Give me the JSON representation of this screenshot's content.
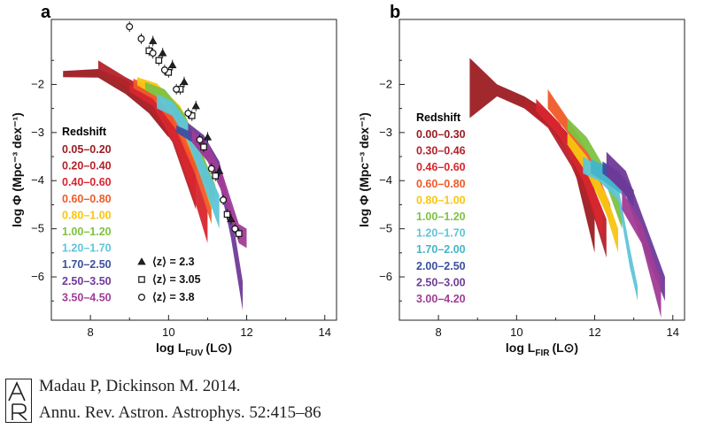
{
  "chart_data": [
    {
      "type": "area",
      "panel_letter": "a",
      "xlabel_main": "log L",
      "xlabel_sub": "FUV",
      "xlabel_unit": "(L⊙)",
      "ylabel": "log Φ (Mpc⁻³ dex⁻¹)",
      "xlim": [
        7,
        14.3
      ],
      "ylim": [
        -6.9,
        -0.65
      ],
      "xticks": [
        8,
        10,
        12,
        14
      ],
      "yticks": [
        -2,
        -3,
        -4,
        -5,
        -6
      ],
      "xtick_labels": [
        "8",
        "10",
        "12",
        "14"
      ],
      "ytick_labels": [
        "−2",
        "−3",
        "−4",
        "−5",
        "−6"
      ],
      "legend_title": "Redshift",
      "legend_placement": "left",
      "series": [
        {
          "name": "0.05–0.20",
          "color": "#9c1c22",
          "upper": [
            [
              7.3,
              -1.72
            ],
            [
              8.2,
              -1.68
            ],
            [
              8.9,
              -1.9
            ],
            [
              9.5,
              -2.3
            ],
            [
              10.0,
              -2.8
            ]
          ],
          "lower": [
            [
              7.3,
              -1.85
            ],
            [
              8.2,
              -1.86
            ],
            [
              8.9,
              -2.2
            ],
            [
              9.5,
              -2.6
            ],
            [
              10.0,
              -3.1
            ]
          ]
        },
        {
          "name": "0.20–0.40",
          "color": "#b5222a",
          "upper": [
            [
              8.2,
              -1.5
            ],
            [
              8.9,
              -1.85
            ],
            [
              9.5,
              -2.1
            ],
            [
              10.1,
              -2.7
            ],
            [
              10.7,
              -3.7
            ]
          ],
          "lower": [
            [
              8.2,
              -1.7
            ],
            [
              8.9,
              -2.05
            ],
            [
              9.5,
              -2.5
            ],
            [
              10.1,
              -3.2
            ],
            [
              10.7,
              -4.6
            ]
          ]
        },
        {
          "name": "0.40–0.60",
          "color": "#d8262e",
          "upper": [
            [
              9.0,
              -2.0
            ],
            [
              9.6,
              -2.2
            ],
            [
              10.2,
              -2.9
            ],
            [
              10.7,
              -3.9
            ],
            [
              11.0,
              -4.6
            ]
          ],
          "lower": [
            [
              9.0,
              -2.15
            ],
            [
              9.6,
              -2.45
            ],
            [
              10.2,
              -3.3
            ],
            [
              10.7,
              -4.5
            ],
            [
              11.0,
              -5.3
            ]
          ]
        },
        {
          "name": "0.60–0.80",
          "color": "#f05a28",
          "upper": [
            [
              9.1,
              -1.88
            ],
            [
              9.6,
              -2.05
            ],
            [
              10.2,
              -2.55
            ],
            [
              10.7,
              -3.4
            ],
            [
              11.1,
              -4.3
            ]
          ],
          "lower": [
            [
              9.1,
              -2.08
            ],
            [
              9.6,
              -2.3
            ],
            [
              10.2,
              -2.95
            ],
            [
              10.7,
              -3.9
            ],
            [
              11.1,
              -4.9
            ]
          ]
        },
        {
          "name": "0.80–1.00",
          "color": "#f9c512",
          "upper": [
            [
              9.2,
              -1.85
            ],
            [
              9.7,
              -1.98
            ],
            [
              10.3,
              -2.45
            ],
            [
              10.8,
              -3.3
            ],
            [
              11.1,
              -4.0
            ]
          ],
          "lower": [
            [
              9.2,
              -2.02
            ],
            [
              9.7,
              -2.25
            ],
            [
              10.3,
              -2.85
            ],
            [
              10.8,
              -3.85
            ],
            [
              11.1,
              -4.6
            ]
          ]
        },
        {
          "name": "1.00–1.20",
          "color": "#7dc242",
          "upper": [
            [
              9.4,
              -1.95
            ],
            [
              9.9,
              -2.1
            ],
            [
              10.4,
              -2.6
            ],
            [
              10.9,
              -3.5
            ],
            [
              11.2,
              -4.1
            ]
          ],
          "lower": [
            [
              9.4,
              -2.12
            ],
            [
              9.9,
              -2.35
            ],
            [
              10.4,
              -2.95
            ],
            [
              10.9,
              -3.95
            ],
            [
              11.2,
              -4.5
            ]
          ]
        },
        {
          "name": "1.20–1.70",
          "color": "#5ec5d8",
          "upper": [
            [
              9.7,
              -2.2
            ],
            [
              10.1,
              -2.35
            ],
            [
              10.5,
              -2.8
            ],
            [
              10.9,
              -3.6
            ],
            [
              11.3,
              -4.3
            ]
          ],
          "lower": [
            [
              9.7,
              -2.5
            ],
            [
              10.1,
              -2.65
            ],
            [
              10.5,
              -3.2
            ],
            [
              10.9,
              -4.1
            ],
            [
              11.3,
              -5.0
            ]
          ]
        },
        {
          "name": "1.70–2.50",
          "color": "#3b4fa0",
          "upper": [
            [
              10.2,
              -2.85
            ],
            [
              10.6,
              -3.0
            ],
            [
              11.0,
              -3.3
            ],
            [
              11.4,
              -3.9
            ]
          ],
          "lower": [
            [
              10.2,
              -3.0
            ],
            [
              10.6,
              -3.2
            ],
            [
              11.0,
              -3.6
            ],
            [
              11.4,
              -4.2
            ]
          ]
        },
        {
          "name": "2.50–3.50",
          "color": "#6f3a98",
          "upper": [
            [
              10.5,
              -2.8
            ],
            [
              10.9,
              -3.05
            ],
            [
              11.3,
              -3.6
            ],
            [
              11.6,
              -4.6
            ],
            [
              11.9,
              -6.1
            ]
          ],
          "lower": [
            [
              10.5,
              -3.05
            ],
            [
              10.9,
              -3.4
            ],
            [
              11.3,
              -4.05
            ],
            [
              11.6,
              -5.2
            ],
            [
              11.9,
              -6.7
            ]
          ]
        },
        {
          "name": "3.50–4.50",
          "color": "#a03c96",
          "upper": [
            [
              10.6,
              -2.95
            ],
            [
              11.0,
              -3.25
            ],
            [
              11.4,
              -3.9
            ],
            [
              11.8,
              -4.9
            ],
            [
              12.0,
              -5.0
            ]
          ],
          "lower": [
            [
              10.6,
              -3.2
            ],
            [
              11.0,
              -3.6
            ],
            [
              11.4,
              -4.3
            ],
            [
              11.8,
              -5.3
            ],
            [
              12.0,
              -5.4
            ]
          ]
        }
      ],
      "markers": [
        {
          "label": "⟨z⟩ = 2.3",
          "symbol": "triangle",
          "points": [
            [
              9.6,
              -1.1
            ],
            [
              9.85,
              -1.35
            ],
            [
              10.1,
              -1.6
            ],
            [
              10.4,
              -1.95
            ],
            [
              10.7,
              -2.45
            ],
            [
              11.0,
              -3.1
            ],
            [
              11.3,
              -3.8
            ],
            [
              11.6,
              -4.8
            ]
          ]
        },
        {
          "label": "⟨z⟩ = 3.05",
          "symbol": "square",
          "points": [
            [
              9.5,
              -1.3
            ],
            [
              9.75,
              -1.5
            ],
            [
              10.0,
              -1.75
            ],
            [
              10.3,
              -2.1
            ],
            [
              10.6,
              -2.65
            ],
            [
              10.9,
              -3.3
            ],
            [
              11.2,
              -3.9
            ],
            [
              11.5,
              -4.7
            ],
            [
              11.8,
              -5.1
            ]
          ]
        },
        {
          "label": "⟨z⟩ = 3.8",
          "symbol": "circle",
          "points": [
            [
              9.0,
              -0.8
            ],
            [
              9.3,
              -1.05
            ],
            [
              9.6,
              -1.35
            ],
            [
              9.9,
              -1.7
            ],
            [
              10.2,
              -2.1
            ],
            [
              10.5,
              -2.6
            ],
            [
              10.8,
              -3.15
            ],
            [
              11.1,
              -3.75
            ],
            [
              11.4,
              -4.4
            ],
            [
              11.7,
              -5.0
            ]
          ]
        }
      ]
    },
    {
      "type": "area",
      "panel_letter": "b",
      "xlabel_main": "log L",
      "xlabel_sub": "FIR",
      "xlabel_unit": "(L⊙)",
      "ylabel": "log Φ (Mpc⁻³ dex⁻¹)",
      "xlim": [
        7,
        14.3
      ],
      "ylim": [
        -6.9,
        -0.65
      ],
      "xticks": [
        8,
        10,
        12,
        14
      ],
      "yticks": [
        -2,
        -3,
        -4,
        -5,
        -6
      ],
      "xtick_labels": [
        "8",
        "10",
        "12",
        "14"
      ],
      "ytick_labels": [
        "−2",
        "−3",
        "−4",
        "−5",
        "−6"
      ],
      "legend_title": "Redshift",
      "legend_placement": "left",
      "series": [
        {
          "name": "0.00–0.30",
          "color": "#9c1c22",
          "upper": [
            [
              8.8,
              -1.45
            ],
            [
              9.5,
              -2.0
            ],
            [
              10.2,
              -2.25
            ],
            [
              10.8,
              -2.55
            ],
            [
              11.4,
              -3.1
            ],
            [
              12.0,
              -4.0
            ]
          ],
          "lower": [
            [
              8.8,
              -2.7
            ],
            [
              9.5,
              -2.25
            ],
            [
              10.2,
              -2.5
            ],
            [
              10.8,
              -2.85
            ],
            [
              11.4,
              -3.5
            ],
            [
              12.0,
              -5.5
            ]
          ]
        },
        {
          "name": "0.30–0.46",
          "color": "#b5222a",
          "upper": [
            [
              10.2,
              -2.3
            ],
            [
              10.8,
              -2.6
            ],
            [
              11.4,
              -3.2
            ],
            [
              12.0,
              -4.2
            ],
            [
              12.3,
              -4.8
            ]
          ],
          "lower": [
            [
              10.2,
              -2.5
            ],
            [
              10.8,
              -2.9
            ],
            [
              11.4,
              -3.7
            ],
            [
              12.0,
              -4.8
            ],
            [
              12.3,
              -5.6
            ]
          ]
        },
        {
          "name": "0.46–0.60",
          "color": "#d8262e",
          "upper": [
            [
              10.5,
              -2.3
            ],
            [
              11.1,
              -2.8
            ],
            [
              11.7,
              -3.6
            ],
            [
              12.2,
              -4.6
            ]
          ],
          "lower": [
            [
              10.5,
              -2.55
            ],
            [
              11.1,
              -3.1
            ],
            [
              11.7,
              -4.0
            ],
            [
              12.2,
              -5.2
            ]
          ]
        },
        {
          "name": "0.60–0.80",
          "color": "#f05a28",
          "upper": [
            [
              10.8,
              -2.1
            ],
            [
              11.3,
              -2.7
            ],
            [
              11.9,
              -3.5
            ],
            [
              12.4,
              -4.5
            ]
          ],
          "lower": [
            [
              10.8,
              -2.5
            ],
            [
              11.3,
              -3.0
            ],
            [
              11.9,
              -3.9
            ],
            [
              12.4,
              -4.9
            ]
          ]
        },
        {
          "name": "0.80–1.00",
          "color": "#f9c512",
          "upper": [
            [
              11.3,
              -3.0
            ],
            [
              11.8,
              -3.5
            ],
            [
              12.3,
              -4.3
            ],
            [
              12.6,
              -5.0
            ]
          ],
          "lower": [
            [
              11.3,
              -3.25
            ],
            [
              11.8,
              -3.85
            ],
            [
              12.3,
              -4.7
            ],
            [
              12.6,
              -5.5
            ]
          ]
        },
        {
          "name": "1.00–1.20",
          "color": "#7dc242",
          "upper": [
            [
              11.3,
              -2.7
            ],
            [
              11.8,
              -3.1
            ],
            [
              12.3,
              -3.8
            ],
            [
              12.7,
              -4.6
            ]
          ],
          "lower": [
            [
              11.3,
              -2.95
            ],
            [
              11.8,
              -3.4
            ],
            [
              12.3,
              -4.1
            ],
            [
              12.7,
              -5.0
            ]
          ]
        },
        {
          "name": "1.20–1.70",
          "color": "#5ec5d8",
          "upper": [
            [
              11.7,
              -3.5
            ],
            [
              12.1,
              -3.7
            ],
            [
              12.6,
              -4.1
            ],
            [
              12.9,
              -5.4
            ],
            [
              13.1,
              -6.2
            ]
          ],
          "lower": [
            [
              11.7,
              -3.85
            ],
            [
              12.1,
              -4.0
            ],
            [
              12.6,
              -4.4
            ],
            [
              12.9,
              -5.8
            ],
            [
              13.1,
              -6.5
            ]
          ]
        },
        {
          "name": "1.70–2.00",
          "color": "#43b5c8",
          "upper": [
            [
              11.9,
              -3.55
            ],
            [
              12.3,
              -3.7
            ],
            [
              12.8,
              -4.05
            ]
          ],
          "lower": [
            [
              11.9,
              -3.85
            ],
            [
              12.3,
              -4.05
            ],
            [
              12.8,
              -4.35
            ]
          ]
        },
        {
          "name": "2.00–2.50",
          "color": "#3b4fa0",
          "upper": [
            [
              12.2,
              -3.6
            ],
            [
              12.6,
              -3.8
            ],
            [
              13.0,
              -4.2
            ]
          ],
          "lower": [
            [
              12.2,
              -3.85
            ],
            [
              12.6,
              -4.1
            ],
            [
              13.0,
              -4.55
            ]
          ]
        },
        {
          "name": "2.50–3.00",
          "color": "#6f3a98",
          "upper": [
            [
              12.3,
              -3.4
            ],
            [
              12.8,
              -3.8
            ],
            [
              13.3,
              -4.9
            ],
            [
              13.8,
              -6.0
            ]
          ],
          "lower": [
            [
              12.3,
              -3.9
            ],
            [
              12.8,
              -4.3
            ],
            [
              13.3,
              -5.5
            ],
            [
              13.8,
              -6.5
            ]
          ]
        },
        {
          "name": "3.00–4.20",
          "color": "#a03c96",
          "upper": [
            [
              12.7,
              -4.2
            ],
            [
              13.2,
              -4.9
            ],
            [
              13.7,
              -6.1
            ]
          ],
          "lower": [
            [
              12.7,
              -4.6
            ],
            [
              13.2,
              -5.3
            ],
            [
              13.7,
              -6.85
            ]
          ]
        }
      ]
    }
  ],
  "citation": {
    "line1": "Madau P, Dickinson M. 2014.",
    "line2": "Annu. Rev. Astron. Astrophys. 52:415–86"
  }
}
